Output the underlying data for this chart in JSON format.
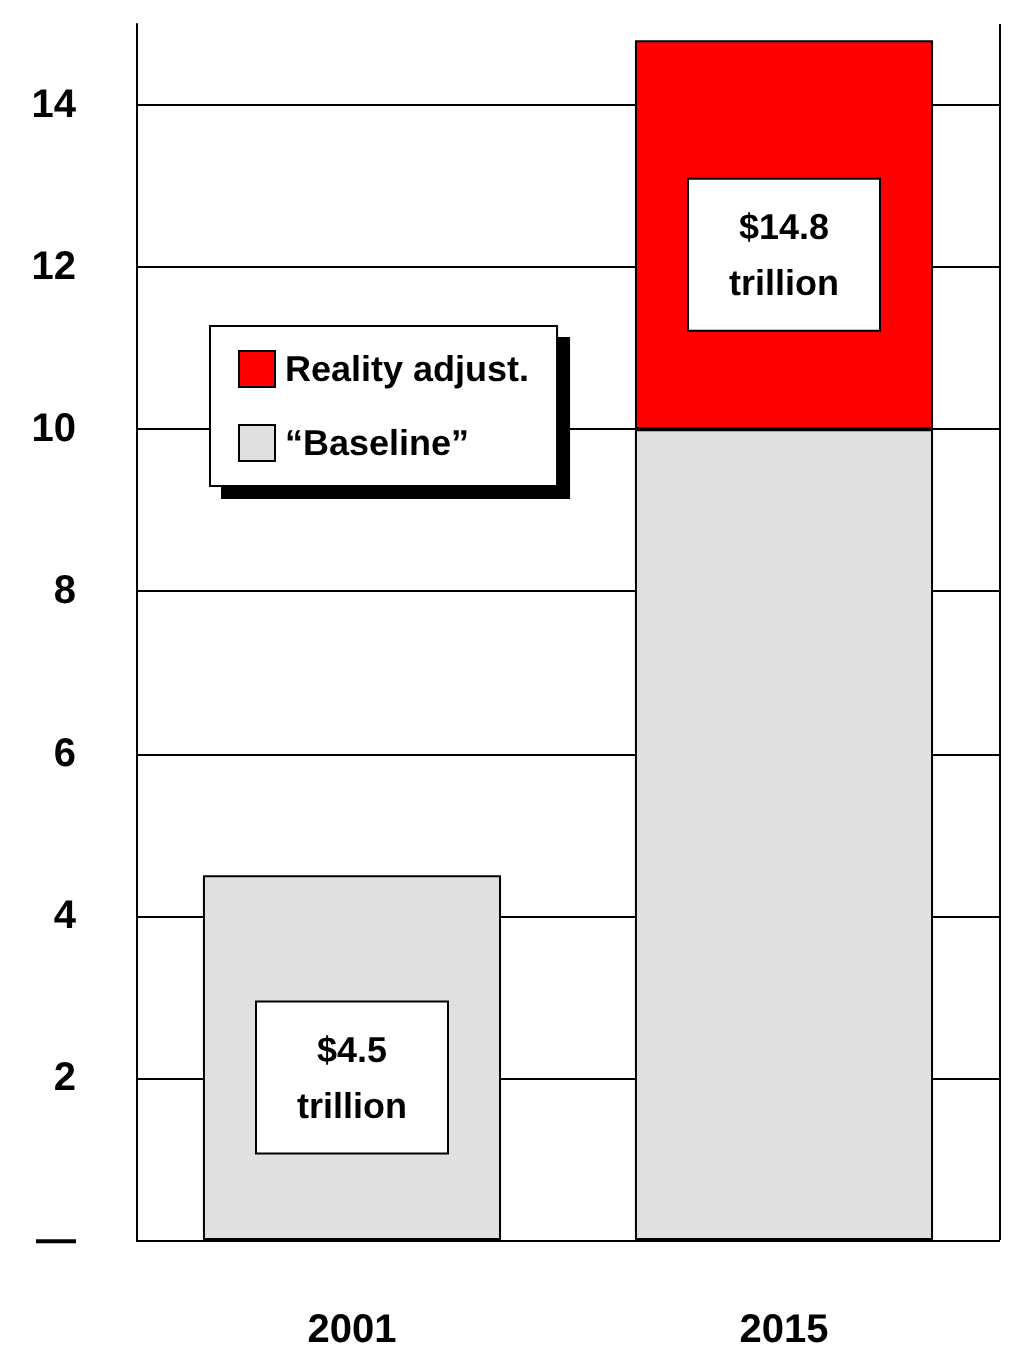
{
  "chart_data": {
    "type": "bar",
    "stacked": true,
    "categories": [
      "2001",
      "2015"
    ],
    "series": [
      {
        "name": "“Baseline”",
        "color": "#e0e0e0",
        "values": [
          4.5,
          10
        ]
      },
      {
        "name": "Reality adjust.",
        "color": "#ff0000",
        "values": [
          null,
          4.8
        ]
      }
    ],
    "ylim": [
      0,
      15
    ],
    "yticks": [
      {
        "value": 0,
        "label": "—"
      },
      2,
      4,
      6,
      8,
      10,
      12,
      14
    ],
    "totals": [
      "$4.5\ntrillion",
      "$14.8\ntrillion"
    ],
    "grid": "y",
    "legend": "top left"
  }
}
